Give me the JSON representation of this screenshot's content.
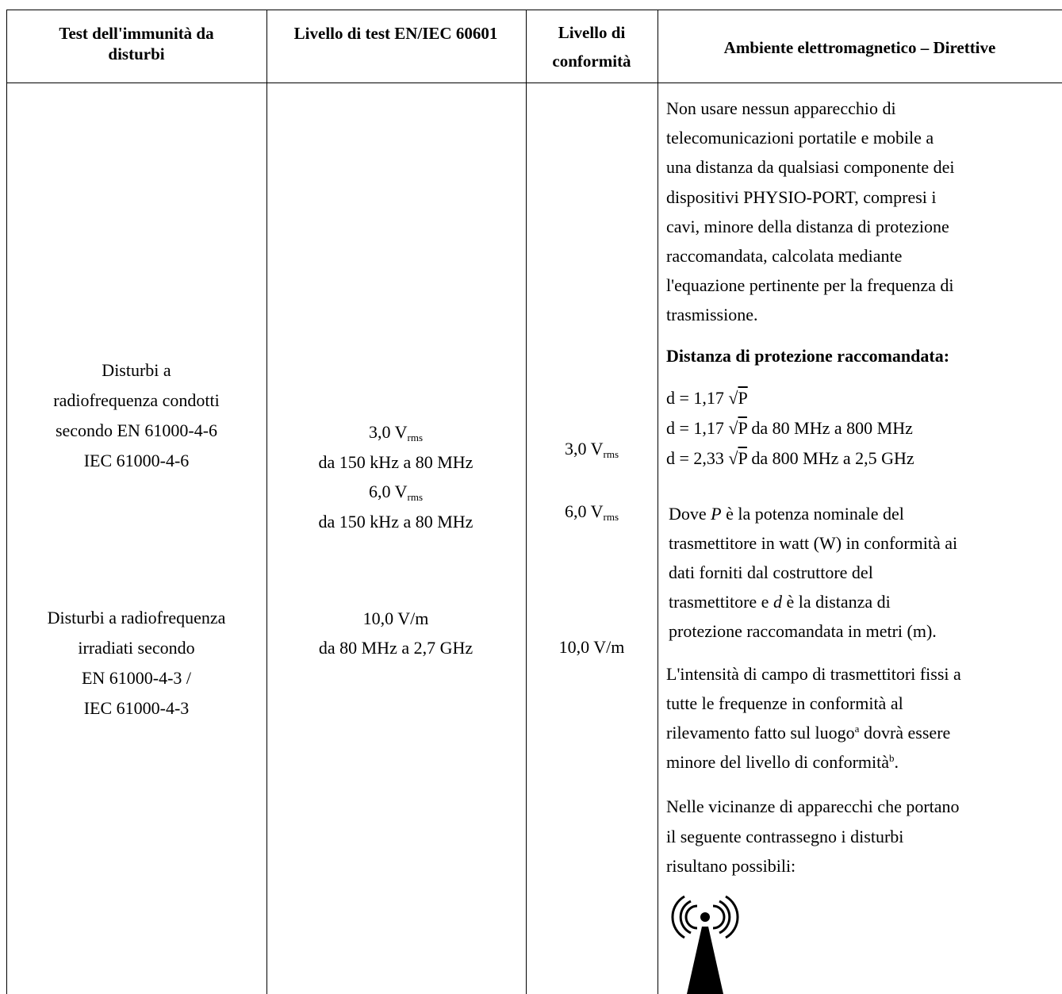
{
  "table": {
    "header": [
      "Test dell'immunità da disturbi",
      "Livello di test EN/IEC 60601",
      "Livello di conformità",
      "Ambiente elettromagnetico – Direttive"
    ],
    "test": {
      "conducted": [
        "Disturbi a",
        "radiofrequenza condotti",
        "secondo EN 61000-4-6",
        "IEC 61000-4-6"
      ],
      "radiated": [
        "Disturbi a radiofrequenza",
        "irradiati secondo",
        "EN 61000-4-3 /",
        "IEC 61000-4-3"
      ]
    },
    "level": {
      "v1": [
        "3,0 V",
        "rms"
      ],
      "r1": "da 150 kHz a 80 MHz",
      "v2": [
        "6,0 V",
        "rms"
      ],
      "r2": "da 150 kHz a 80 MHz",
      "v3": "10,0 V/m",
      "r3": "da 80 MHz a 2,7 GHz"
    },
    "compliance": {
      "v1": [
        "3,0 V",
        "rms"
      ],
      "v2": [
        "6,0 V",
        "rms"
      ],
      "v3": "10,0 V/m"
    },
    "env": {
      "intro": [
        "Non usare nessun apparecchio di",
        "telecomunicazioni portatile e mobile a",
        "una distanza da qualsiasi componente dei",
        "dispositivi PHYSIO-PORT, compresi i",
        "cavi, minore della distanza di protezione",
        "raccomandata, calcolata mediante",
        "l'equazione pertinente per la frequenza di",
        "trasmissione."
      ],
      "heading": "Distanza di protezione raccomandata:",
      "formulas": [
        [
          "d = 1,17 √",
          "P",
          ""
        ],
        [
          "d = 1,17 √",
          "P",
          " da 80 MHz a 800 MHz"
        ],
        [
          "d = 2,33 √",
          "P",
          " da 800 MHz a 2,5 GHz"
        ]
      ],
      "where": [
        [
          "Dove ",
          "P",
          " è la potenza nominale del"
        ],
        "trasmettitore in watt (W) in conformità ai",
        "dati forniti dal costruttore del",
        [
          "trasmettitore e ",
          "d",
          " è la distanza di"
        ],
        "protezione raccomandata in metri (m)."
      ],
      "field": [
        "L'intensità di campo di trasmettitori fissi a",
        "tutte le frequenze in conformità al",
        [
          "rilevamento fatto sul luogo",
          "a",
          " dovrà essere"
        ],
        [
          "minore del livello di conformità",
          "b",
          "."
        ]
      ],
      "near": [
        "Nelle vicinanze di apparecchi che portano",
        "il seguente contrassegno i disturbi",
        "risultano possibili:"
      ]
    }
  }
}
